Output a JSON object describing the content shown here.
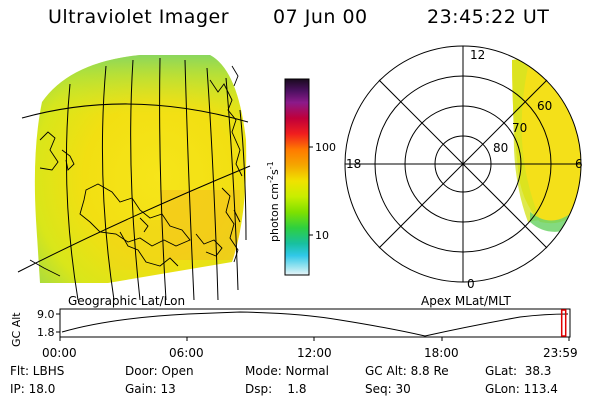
{
  "header": {
    "title": "Ultraviolet Imager",
    "date": "07 Jun 00",
    "time": "23:45:22 UT"
  },
  "colorbar": {
    "label": "photon cm",
    "exp1": "-2",
    "unit2": "s",
    "exp2": "-1",
    "ticks": [
      "100",
      "10"
    ],
    "colors": [
      "#1a0a1e",
      "#4b1060",
      "#8b1a8a",
      "#c0003a",
      "#f01e1e",
      "#ff7a00",
      "#f5a600",
      "#f0e200",
      "#c8ee00",
      "#7ee000",
      "#2ed040",
      "#18c0a0",
      "#30c8e8",
      "#9ce4f0",
      "#e8f4f8"
    ]
  },
  "left_map": {
    "caption": "Geographic Lat/Lon"
  },
  "right_map": {
    "caption": "Apex MLat/MLT",
    "mlt_labels": {
      "top": "12",
      "left": "18",
      "right": "6",
      "bottom": "0"
    },
    "lat_labels": [
      "60",
      "70",
      "80"
    ]
  },
  "timeline": {
    "axis_label": "GC Alt",
    "y_max": "9.0",
    "y_min": "1.8",
    "time_ticks": [
      "00:00",
      "06:00",
      "12:00",
      "18:00",
      "23:59"
    ],
    "current_marker_hours": 23.75
  },
  "info": {
    "row1": {
      "flt": "Flt: LBHS",
      "door": "Door: Open",
      "mode": "Mode: Normal",
      "gcalt": "GC Alt: 8.8 Re",
      "glat": "GLat:  38.3"
    },
    "row2": {
      "ip": "IP: 18.0",
      "gain": "Gain: 13",
      "dsp": "Dsp:    1.8",
      "seq": "Seq: 30",
      "glon": "GLon: 113.4"
    }
  }
}
